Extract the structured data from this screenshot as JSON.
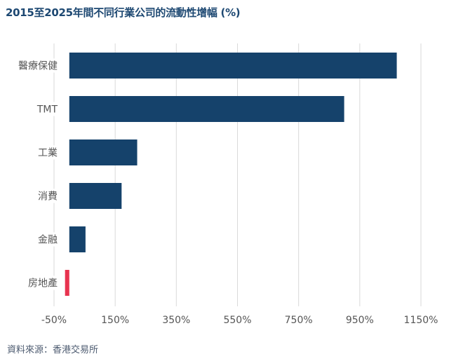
{
  "title": "2015至2025年間不同行業公司的流動性增幅 (%)",
  "source": "資料來源：香港交易所",
  "colors": {
    "positive": "#15426b",
    "negative": "#e8334f",
    "grid": "#d9d9d9",
    "title": "#1d4872"
  },
  "chart_data": {
    "type": "bar",
    "orientation": "horizontal",
    "title": "2015至2025年間不同行業公司的流動性增幅 (%)",
    "categories": [
      "醫療保健",
      "TMT",
      "工業",
      "消費",
      "金融",
      "房地產"
    ],
    "values": [
      1071,
      899,
      222,
      171,
      53,
      -14
    ],
    "unit": "%",
    "xlim": [
      -50,
      1150
    ],
    "xticks": [
      -50,
      150,
      350,
      550,
      750,
      950,
      1150
    ],
    "xtick_labels": [
      "-50%",
      "150%",
      "350%",
      "550%",
      "750%",
      "950%",
      "1150%"
    ],
    "grid": "vertical",
    "legend": "none"
  }
}
